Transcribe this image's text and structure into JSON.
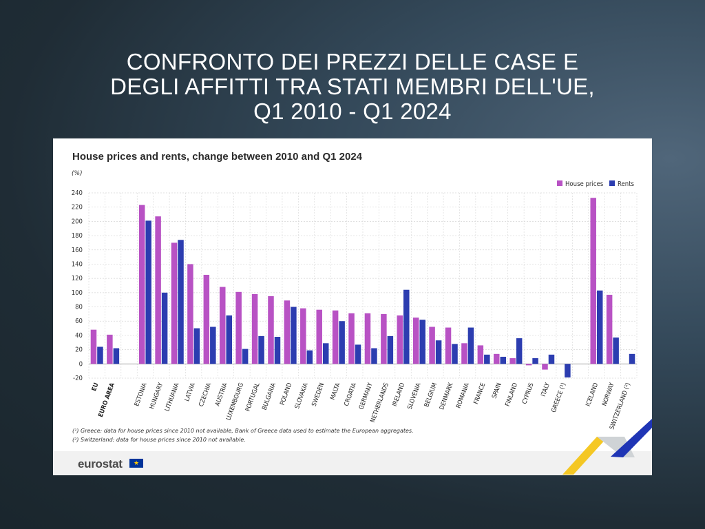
{
  "slide": {
    "title_lines": [
      "CONFRONTO DEI PREZZI DELLE CASE E",
      "DEGLI AFFITTI TRA STATI MEMBRI DELL'UE,",
      "Q1 2010 - Q1 2024"
    ]
  },
  "footer": {
    "note1": "(¹) Greece: data for house prices since 2010 not available, Bank of Greece data used to estimate the European aggregates.",
    "note2": "(²) Switzerland: data for house prices since 2010 not available.",
    "logo": "eurostat",
    "flag_glyph": "★"
  },
  "colors": {
    "house": "#b852c4",
    "rents": "#2c3db0",
    "grid": "#d6d6d6"
  },
  "chart_data": {
    "type": "bar",
    "title": "House prices and rents, change between 2010 and Q1 2024",
    "unit": "(%)",
    "ylim": [
      -20,
      240
    ],
    "yticks": [
      -20,
      0,
      20,
      40,
      60,
      80,
      100,
      120,
      140,
      160,
      180,
      200,
      220,
      240
    ],
    "legend": [
      "House prices",
      "Rents"
    ],
    "legend_position": "top-right",
    "categories": [
      "EU",
      "EURO AREA",
      "",
      "ESTONIA",
      "HUNGARY",
      "LITHUANIA",
      "LATVIA",
      "CZECHIA",
      "AUSTRIA",
      "LUXEMBOURG",
      "PORTUGAL",
      "BULGARIA",
      "POLAND",
      "SLOVAKIA",
      "SWEDEN",
      "MALTA",
      "CROATIA",
      "GERMANY",
      "NETHERLANDS",
      "IRELAND",
      "SLOVENIA",
      "BELGIUM",
      "DENMARK",
      "ROMANIA",
      "FRANCE",
      "SPAIN",
      "FINLAND",
      "CYPRUS",
      "ITALY",
      "GREECE (¹)",
      "",
      "ICELAND",
      "NORWAY",
      "SWITZERLAND (²)"
    ],
    "bold_categories": [
      "EU",
      "EURO AREA"
    ],
    "series": [
      {
        "name": "House prices",
        "values": [
          48,
          41,
          null,
          223,
          207,
          170,
          140,
          125,
          108,
          101,
          98,
          95,
          89,
          78,
          76,
          75,
          71,
          71,
          70,
          68,
          65,
          52,
          51,
          29,
          26,
          14,
          8,
          -2,
          -8,
          null,
          null,
          233,
          97,
          null
        ]
      },
      {
        "name": "Rents",
        "values": [
          24,
          22,
          null,
          201,
          100,
          174,
          50,
          52,
          68,
          21,
          39,
          38,
          80,
          19,
          29,
          60,
          27,
          22,
          39,
          104,
          62,
          33,
          28,
          51,
          13,
          10,
          36,
          8,
          13,
          -19,
          null,
          103,
          37,
          14
        ]
      }
    ]
  }
}
